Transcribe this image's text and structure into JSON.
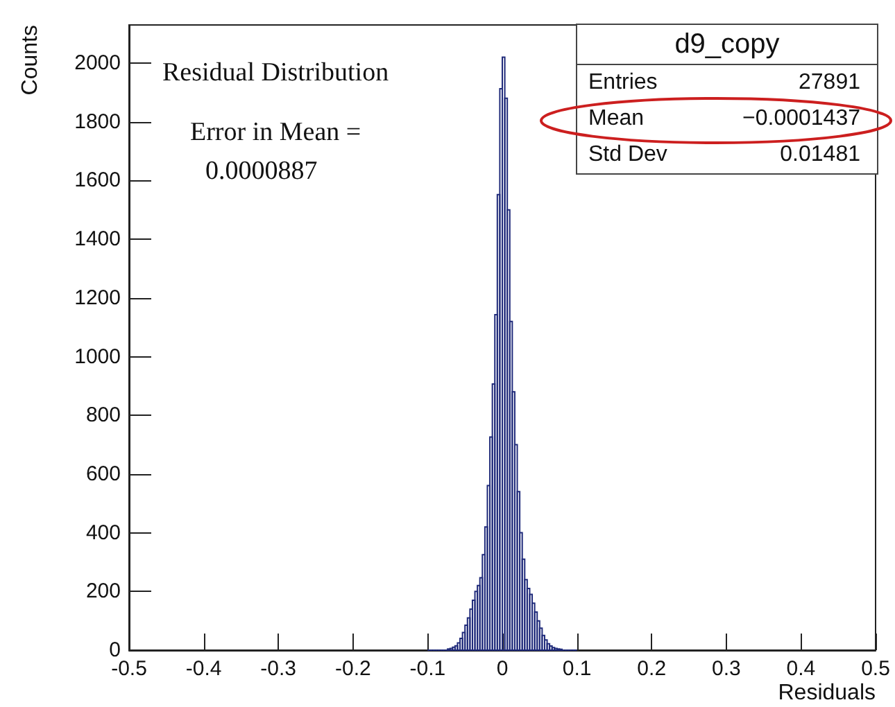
{
  "chart_data": {
    "type": "histogram",
    "xlabel": "Residuals",
    "ylabel": "Counts",
    "bins": [
      -0.1,
      -0.09667,
      -0.09333,
      -0.09,
      -0.08667,
      -0.08333,
      -0.08,
      -0.07667,
      -0.07333,
      -0.07,
      -0.06667,
      -0.06333,
      -0.06,
      -0.05667,
      -0.05333,
      -0.05,
      -0.04667,
      -0.04333,
      -0.04,
      -0.03667,
      -0.03333,
      -0.03,
      -0.02667,
      -0.02333,
      -0.02,
      -0.01667,
      -0.01333,
      -0.01,
      -0.00667,
      -0.00333,
      0,
      0.00333,
      0.00667,
      0.01,
      0.01333,
      0.01667,
      0.02,
      0.02333,
      0.02667,
      0.03,
      0.03333,
      0.03667,
      0.04,
      0.04333,
      0.04667,
      0.05,
      0.05333,
      0.05667,
      0.06,
      0.06333,
      0.06667,
      0.07,
      0.07333,
      0.07667,
      0.08,
      0.08333,
      0.08667,
      0.09,
      0.09333,
      0.09667,
      0.1
    ],
    "values": [
      0,
      0,
      0,
      0,
      0,
      0,
      0,
      0,
      4,
      6,
      10,
      15,
      25,
      40,
      60,
      85,
      110,
      140,
      170,
      200,
      220,
      247,
      325,
      420,
      561,
      726,
      907,
      1143,
      1552,
      1913,
      2020,
      1880,
      1500,
      1120,
      880,
      700,
      540,
      400,
      310,
      240,
      210,
      190,
      160,
      130,
      100,
      75,
      50,
      35,
      22,
      14,
      9,
      6,
      4,
      3,
      0,
      0,
      0,
      0,
      0,
      0
    ],
    "color": "#1f2a7a",
    "xlim": [
      -0.5,
      0.5
    ],
    "xticks": [
      -0.5,
      -0.4,
      -0.3,
      -0.2,
      -0.1,
      0,
      0.1,
      0.2,
      0.3,
      0.4,
      0.5
    ],
    "ylim": [
      0,
      2130
    ],
    "yticks": [
      0,
      200,
      400,
      600,
      800,
      1000,
      1200,
      1400,
      1600,
      1800,
      2000
    ],
    "annotations": [
      "Residual Distribution",
      "Error in Mean =",
      "0.0000887",
      "d9_copy",
      "Entries",
      "27891",
      "Mean",
      "−0.0001437",
      "Std Dev",
      "0.01481"
    ]
  }
}
